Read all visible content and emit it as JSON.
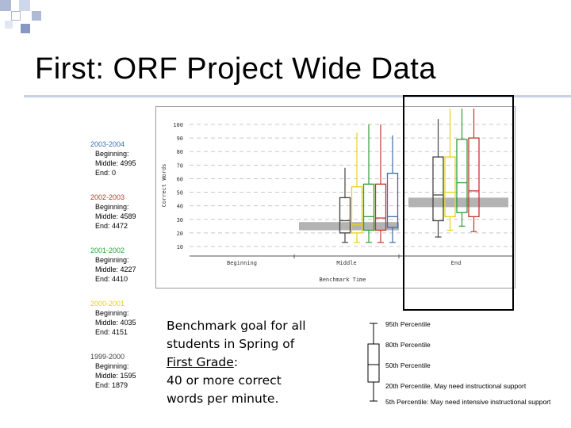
{
  "slide": {
    "title": "First: ORF Project Wide Data",
    "benchmark_lines": [
      "Benchmark goal for all",
      "students in Spring of",
      "First Grade",
      ":",
      "40 or more correct",
      "words per minute."
    ]
  },
  "years": [
    {
      "label": "2003-2004",
      "color": "#3b6fb0",
      "beginning": "Beginning:",
      "middle": "Middle: 4995",
      "end": "End: 0"
    },
    {
      "label": "2002-2003",
      "color": "#c0392b",
      "beginning": "Beginning:",
      "middle": "Middle: 4589",
      "end": "End: 4472"
    },
    {
      "label": "2001-2002",
      "color": "#2e9e3a",
      "beginning": "Beginning:",
      "middle": "Middle: 4227",
      "end": "End: 4410"
    },
    {
      "label": "2000-2001",
      "color": "#e8d21a",
      "beginning": "Beginning:",
      "middle": "Middle: 4035",
      "end": "End: 4151"
    },
    {
      "label": "1999-2000",
      "color": "#444444",
      "beginning": "Beginning:",
      "middle": "Middle: 1595",
      "end": "End: 1879"
    }
  ],
  "percentile_legend": {
    "labels": [
      "95th Percentile",
      "80th Percentile",
      "50th Percentile",
      "20th Percentile, May need instructional support",
      "5th Percentile: May need intensive instructional support"
    ]
  },
  "chart_data": {
    "type": "box",
    "xlabel": "Benchmark Time",
    "ylabel": "Correct Words",
    "categories": [
      "Beginning",
      "Middle",
      "End"
    ],
    "ylim": [
      10,
      100
    ],
    "yticks": [
      10,
      20,
      30,
      40,
      50,
      60,
      70,
      80,
      90,
      100
    ],
    "grid": true,
    "series_colors": [
      "#444444",
      "#e8d21a",
      "#2e9e3a",
      "#c0392b",
      "#3b6fb0"
    ],
    "benchmark_bands": [
      {
        "category": "Middle",
        "from": 22,
        "to": 28,
        "color": "#b3b3b3"
      },
      {
        "category": "End",
        "from": 39,
        "to": 46,
        "color": "#b3b3b3"
      }
    ],
    "boxes": [
      {
        "category": "Middle",
        "series": "1999-2000",
        "p5": 13,
        "p20": 20,
        "p50": 29,
        "p80": 46,
        "p95": 68
      },
      {
        "category": "Middle",
        "series": "2000-2001",
        "p5": 13,
        "p20": 20,
        "p50": 26,
        "p80": 54,
        "p95": 94
      },
      {
        "category": "Middle",
        "series": "2001-2002",
        "p5": 13,
        "p20": 22,
        "p50": 32,
        "p80": 56,
        "p95": 100
      },
      {
        "category": "Middle",
        "series": "2002-2003",
        "p5": 13,
        "p20": 22,
        "p50": 31,
        "p80": 56,
        "p95": 100
      },
      {
        "category": "Middle",
        "series": "2003-2004",
        "p5": 13,
        "p20": 24,
        "p50": 32,
        "p80": 64,
        "p95": 92
      },
      {
        "category": "End",
        "series": "1999-2000",
        "p5": 17,
        "p20": 29,
        "p50": 48,
        "p80": 76,
        "p95": 104
      },
      {
        "category": "End",
        "series": "2000-2001",
        "p5": 22,
        "p20": 32,
        "p50": 50,
        "p80": 76,
        "p95": 114
      },
      {
        "category": "End",
        "series": "2001-2002",
        "p5": 25,
        "p20": 35,
        "p50": 57,
        "p80": 89,
        "p95": 112
      },
      {
        "category": "End",
        "series": "2002-2003",
        "p5": 21,
        "p20": 32,
        "p50": 51,
        "p80": 90,
        "p95": 114
      }
    ]
  }
}
